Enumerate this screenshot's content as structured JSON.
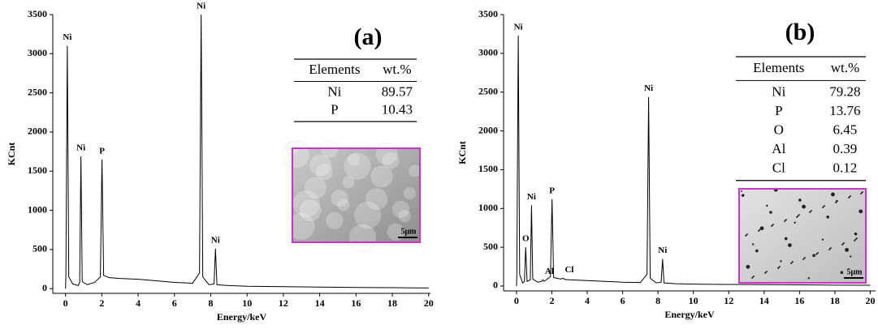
{
  "chart_data": [
    {
      "type": "line",
      "panel_label": "(a)",
      "x_label": "Energy/keV",
      "y_label": "KCnt",
      "xlim": [
        -0.7,
        20.1
      ],
      "ylim": [
        -60,
        3500
      ],
      "xticks": [
        0,
        2,
        4,
        6,
        8,
        10,
        12,
        14,
        16,
        18,
        20
      ],
      "yticks": [
        0,
        500,
        1000,
        1500,
        2000,
        2500,
        3000,
        3500
      ],
      "x": [
        0,
        0.02,
        0.1,
        0.18,
        0.4,
        0.7,
        0.78,
        0.85,
        0.92,
        1.2,
        1.6,
        1.92,
        2.01,
        2.1,
        2.4,
        3,
        4,
        5,
        6,
        7,
        7.38,
        7.47,
        7.56,
        7.9,
        8.18,
        8.26,
        8.34,
        9,
        10,
        12,
        14,
        16,
        18,
        20
      ],
      "series": [
        {
          "color": "#000000",
          "values": [
            0,
            150,
            3100,
            150,
            60,
            40,
            80,
            1690,
            90,
            50,
            80,
            150,
            1650,
            170,
            140,
            130,
            120,
            100,
            80,
            70,
            200,
            3500,
            150,
            50,
            60,
            510,
            50,
            40,
            30,
            25,
            20,
            15,
            12,
            8
          ]
        }
      ],
      "peak_labels": [
        {
          "text": "Ni",
          "x": 0.1,
          "y": 3100
        },
        {
          "text": "Ni",
          "x": 0.85,
          "y": 1690
        },
        {
          "text": "P",
          "x": 2.01,
          "y": 1650
        },
        {
          "text": "Ni",
          "x": 7.47,
          "y": 3500
        },
        {
          "text": "Ni",
          "x": 8.26,
          "y": 510
        }
      ],
      "table": {
        "header": [
          "Elements",
          "wt.%"
        ],
        "rows": [
          [
            "Ni",
            89.57
          ],
          [
            "P",
            10.43
          ]
        ]
      },
      "inset": {
        "scale_label": "5μm",
        "border_color": "#cc33cc"
      }
    },
    {
      "type": "line",
      "panel_label": "(b)",
      "x_label": "Energy/keV",
      "y_label": "KCnt",
      "xlim": [
        -0.73,
        20.3
      ],
      "ylim": [
        -63,
        3500
      ],
      "xticks": [
        0,
        2,
        4,
        6,
        8,
        10,
        12,
        14,
        16,
        18,
        20
      ],
      "yticks": [
        0,
        500,
        1000,
        1500,
        2000,
        2500,
        3000,
        3500
      ],
      "x": [
        0,
        0.02,
        0.1,
        0.18,
        0.35,
        0.45,
        0.52,
        0.6,
        0.78,
        0.85,
        0.92,
        1.2,
        1.42,
        1.49,
        1.56,
        1.92,
        2.01,
        2.1,
        2.5,
        2.62,
        2.75,
        3,
        4,
        5,
        6,
        7,
        7.38,
        7.47,
        7.56,
        7.9,
        8.18,
        8.26,
        8.34,
        9,
        10,
        12,
        14,
        16,
        18,
        20
      ],
      "series": [
        {
          "color": "#000000",
          "values": [
            0,
            150,
            3230,
            150,
            40,
            60,
            500,
            60,
            80,
            1040,
            90,
            50,
            60,
            80,
            60,
            120,
            1120,
            110,
            90,
            100,
            85,
            80,
            70,
            60,
            50,
            45,
            150,
            2440,
            100,
            40,
            50,
            350,
            40,
            30,
            25,
            20,
            18,
            15,
            12,
            10
          ]
        }
      ],
      "peak_labels": [
        {
          "text": "Ni",
          "x": 0.1,
          "y": 3230
        },
        {
          "text": "O",
          "x": 0.52,
          "y": 500
        },
        {
          "text": "Ni",
          "x": 0.85,
          "y": 1040
        },
        {
          "text": "Al",
          "x": 1.49,
          "y": 80
        },
        {
          "text": "P",
          "x": 2.01,
          "y": 1120
        },
        {
          "text": "Cl",
          "x": 2.62,
          "y": 100
        },
        {
          "text": "Ni",
          "x": 7.47,
          "y": 2440
        },
        {
          "text": "Ni",
          "x": 8.26,
          "y": 350
        }
      ],
      "table": {
        "header": [
          "Elements",
          "wt.%"
        ],
        "rows": [
          [
            "Ni",
            79.28
          ],
          [
            "P",
            13.76
          ],
          [
            "O",
            6.45
          ],
          [
            "Al",
            0.39
          ],
          [
            "Cl",
            0.12
          ]
        ]
      },
      "inset": {
        "scale_label": "5μm",
        "border_color": "#cc33cc"
      }
    }
  ]
}
